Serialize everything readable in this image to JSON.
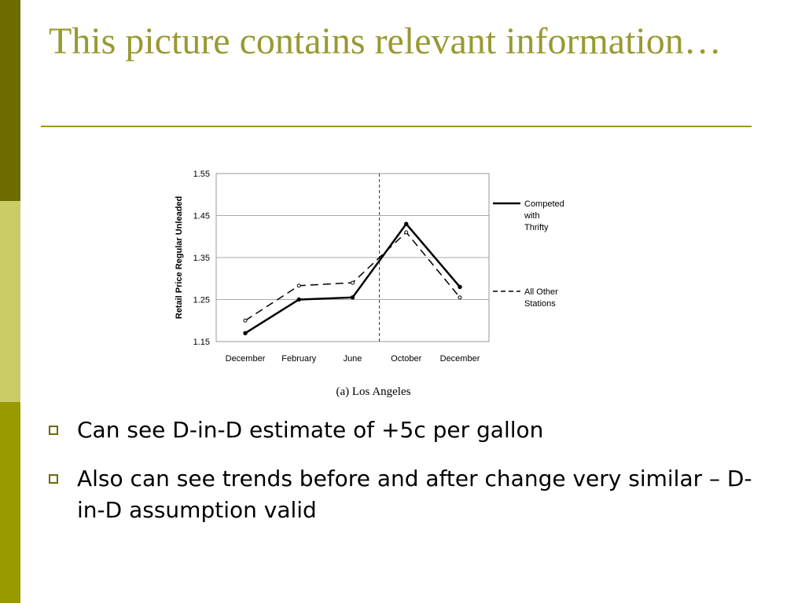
{
  "slide": {
    "title": "This picture contains relevant information…",
    "accent_colors": [
      "#6b6b00",
      "#cccc66",
      "#999900"
    ],
    "title_color": "#999933",
    "bullets": [
      "Can see D-in-D estimate of +5c per gallon",
      "Also can see trends before and after change very similar – D-in-D assumption valid"
    ]
  },
  "chart_data": {
    "type": "line",
    "caption": "(a)  Los Angeles",
    "ylabel": "Retail Price Regular Unleaded",
    "xlabel": "",
    "categories": [
      "December",
      "February",
      "June",
      "October",
      "December"
    ],
    "ylim": [
      1.15,
      1.55
    ],
    "yticks": [
      "1.55",
      "1.45",
      "1.35",
      "1.25",
      "1.15"
    ],
    "grid": true,
    "legend_position": "right",
    "series": [
      {
        "name": "Competed with Thrifty",
        "values": [
          1.17,
          1.25,
          1.255,
          1.43,
          1.28
        ],
        "style": "solid"
      },
      {
        "name": "All Other Stations",
        "values": [
          1.2,
          1.283,
          1.29,
          1.41,
          1.255
        ],
        "style": "dashed"
      }
    ]
  }
}
